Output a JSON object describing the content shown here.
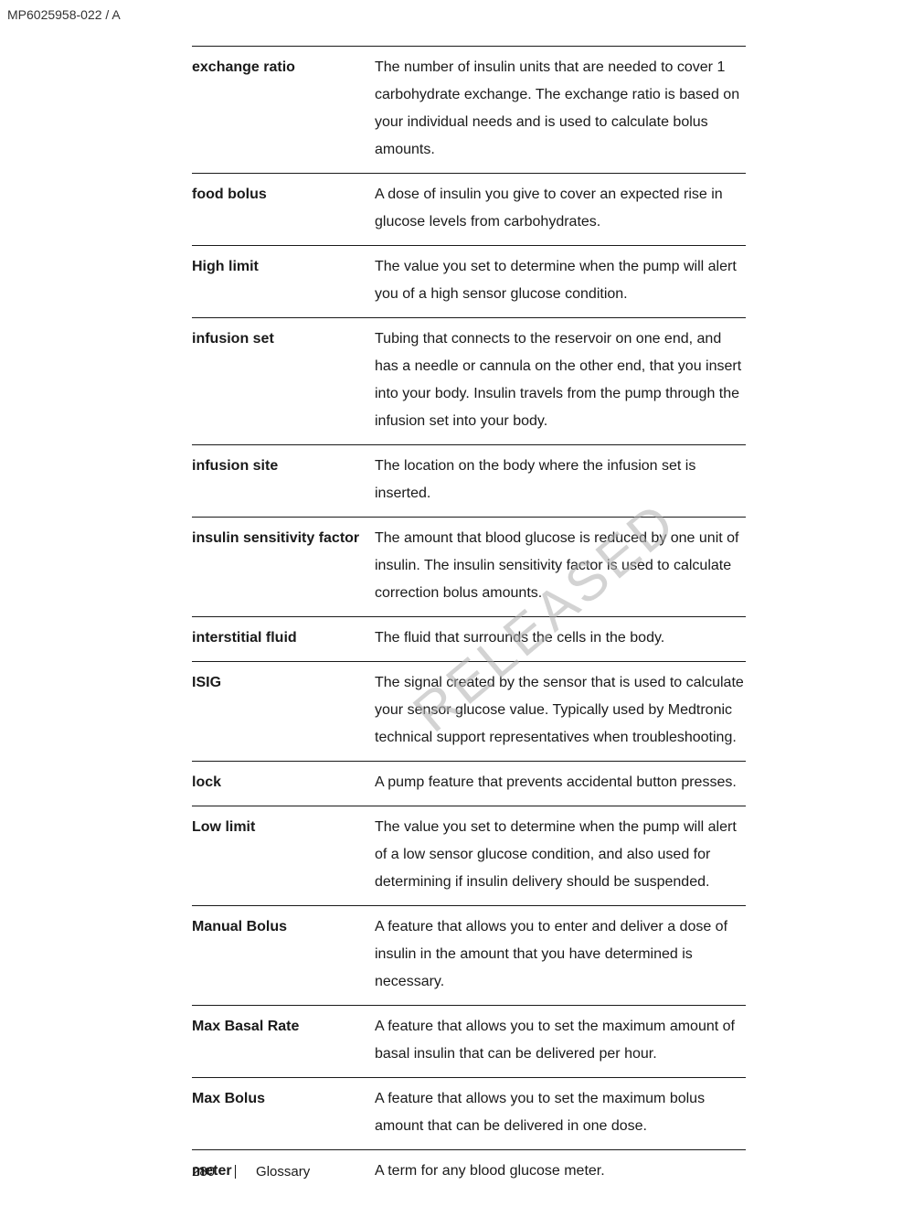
{
  "header": {
    "code": "MP6025958-022 / A"
  },
  "watermark": "RELEASED",
  "glossary": [
    {
      "term": "exchange ratio",
      "definition": "The number of insulin units that are needed to cover 1 carbohydrate exchange. The exchange ratio is based on your individual needs and is used to calculate bolus amounts."
    },
    {
      "term": "food bolus",
      "definition": "A dose of insulin you give to cover an expected rise in glucose levels from carbohydrates."
    },
    {
      "term": "High limit",
      "definition": "The value you set to determine when the pump will alert you of a high sensor glucose condition."
    },
    {
      "term": "infusion set",
      "definition": "Tubing that connects to the reservoir on one end, and has a needle or cannula on the other end, that you insert into your body. Insulin travels from the pump through the infusion set into your body."
    },
    {
      "term": "infusion site",
      "definition": "The location on the body where the infusion set is inserted."
    },
    {
      "term": "insulin sensitivity factor",
      "definition": "The amount that blood glucose is reduced by one unit of insulin. The insulin sensitivity factor is used to calculate correction bolus amounts."
    },
    {
      "term": "interstitial fluid",
      "definition": "The fluid that surrounds the cells in the body."
    },
    {
      "term": "ISIG",
      "definition": "The signal created by the sensor that is used to calculate your sensor glucose value. Typically used by Medtronic technical support representatives when troubleshooting."
    },
    {
      "term": "lock",
      "definition": "A pump feature that prevents accidental button presses."
    },
    {
      "term": "Low limit",
      "definition": "The value you set to determine when the pump will alert of a low sensor glucose condition, and also used for determining if insulin delivery should be suspended."
    },
    {
      "term": "Manual Bolus",
      "definition": "A feature that allows you to enter and deliver a dose of insulin in the amount that you have determined is necessary."
    },
    {
      "term": "Max Basal Rate",
      "definition": "A feature that allows you to set the maximum amount of basal insulin that can be delivered per hour."
    },
    {
      "term": "Max Bolus",
      "definition": "A feature that allows you to set the maximum bolus amount that can be delivered in one dose."
    },
    {
      "term": "meter",
      "definition": "A term for any blood glucose meter."
    }
  ],
  "footer": {
    "page": "280",
    "section": "Glossary"
  }
}
